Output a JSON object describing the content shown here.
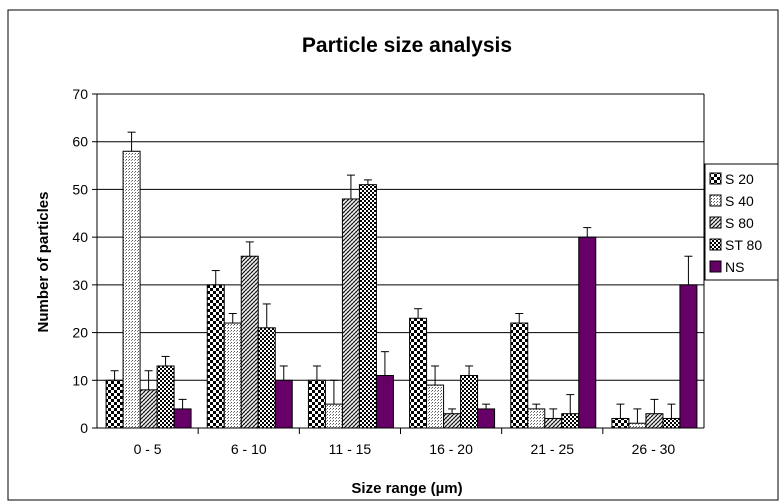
{
  "chart_data": {
    "type": "bar",
    "title": "Particle size analysis",
    "xlabel": "Size range (µm)",
    "ylabel": "Number of particles",
    "ylim": [
      0,
      70
    ],
    "yticks": [
      0,
      10,
      20,
      30,
      40,
      50,
      60,
      70
    ],
    "grid": true,
    "legend_position": "right",
    "categories": [
      "0 - 5",
      "6 - 10",
      "11 - 15",
      "16 - 20",
      "21 - 25",
      "26 - 30"
    ],
    "series": [
      {
        "name": "S 20",
        "pattern": "checker-large",
        "values": [
          10,
          30,
          10,
          23,
          22,
          2
        ],
        "errors": [
          2,
          3,
          3,
          2,
          2,
          3
        ]
      },
      {
        "name": "S 40",
        "pattern": "dots",
        "values": [
          58,
          22,
          5,
          9,
          4,
          1
        ],
        "errors": [
          4,
          2,
          5,
          4,
          1,
          3
        ]
      },
      {
        "name": "S 80",
        "pattern": "diagonal",
        "values": [
          8,
          36,
          48,
          3,
          2,
          3
        ],
        "errors": [
          4,
          3,
          5,
          1,
          2,
          3
        ]
      },
      {
        "name": "ST 80",
        "pattern": "checker-small",
        "values": [
          13,
          21,
          51,
          11,
          3,
          2
        ],
        "errors": [
          2,
          5,
          1,
          2,
          4,
          3
        ]
      },
      {
        "name": "NS",
        "pattern": "solid",
        "color": "#660066",
        "values": [
          4,
          10,
          11,
          4,
          40,
          30
        ],
        "errors": [
          2,
          3,
          5,
          1,
          2,
          6
        ]
      }
    ]
  }
}
